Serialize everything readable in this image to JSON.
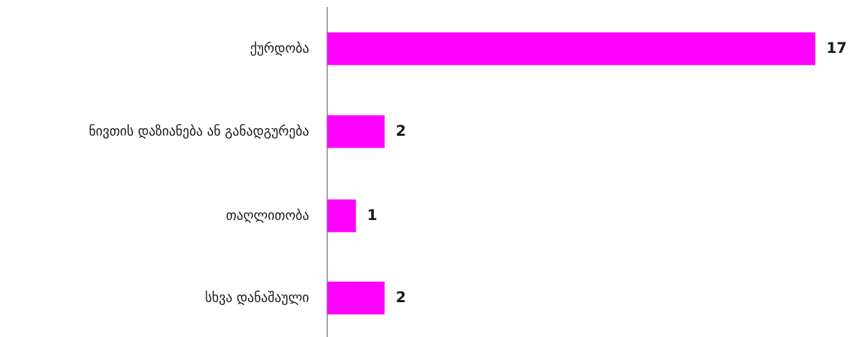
{
  "chart_data": {
    "type": "bar",
    "orientation": "horizontal",
    "categories": [
      "ქურდობა",
      "ნივთის დაზიანება ან განადგურება",
      "თაღლითობა",
      "სხვა დანაშაული"
    ],
    "values": [
      17,
      2,
      1,
      2
    ],
    "xlim": [
      0,
      17
    ],
    "grid": false,
    "legend": "none",
    "bar_color": "#ff00ff"
  }
}
